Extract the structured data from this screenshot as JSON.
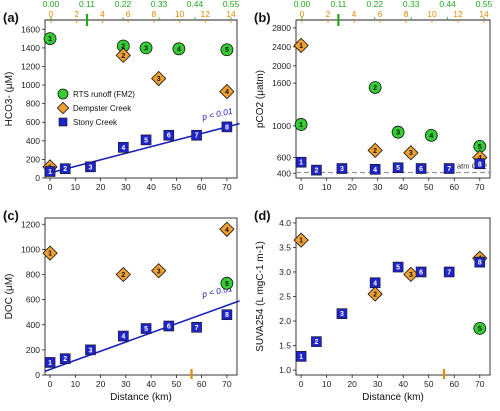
{
  "colors": {
    "rts": "#33cc33",
    "dempster": "#f0a030",
    "stony": "#1f24c8",
    "stony_line": "#1a22b8",
    "top_green": "#22a81e",
    "top_orange": "#e08a00"
  },
  "xlabel": "Distance (km)",
  "top_axes": {
    "green_ticks": [
      "0.00",
      "0.11",
      "0.22",
      "0.33",
      "0.44",
      "0.55"
    ],
    "orange_ticks": [
      "0",
      "2",
      "4",
      "6",
      "8",
      "10",
      "12",
      "14"
    ]
  },
  "legend": {
    "rts": "RTS runoff (FM2)",
    "dempster": "Dempster Creek",
    "stony": "Stony Creek"
  },
  "chart_data": [
    {
      "panel": "(a)",
      "type": "scatter",
      "ylabel": "HCO3- (μM)",
      "xlim": [
        -2,
        75
      ],
      "ylim": [
        0,
        1700
      ],
      "yticks": [
        "0",
        "200",
        "400",
        "600",
        "800",
        "1000",
        "1200",
        "1400",
        "1600"
      ],
      "xticks": [
        "0",
        "10",
        "20",
        "30",
        "40",
        "50",
        "60",
        "70"
      ],
      "pvalue": "p < 0.01",
      "regression": {
        "x": [
          -2,
          75
        ],
        "y": [
          40,
          585
        ]
      },
      "top_green_marker": 0.11,
      "series": [
        {
          "name": "RTS runoff (FM2)",
          "points": [
            [
              0,
              1500,
              "1"
            ],
            [
              29,
              1420,
              "2"
            ],
            [
              38,
              1400,
              "3"
            ],
            [
              51,
              1390,
              "4"
            ],
            [
              70,
              1380,
              "5"
            ]
          ]
        },
        {
          "name": "Dempster Creek",
          "points": [
            [
              0,
              120,
              "1"
            ],
            [
              29,
              1320,
              "2"
            ],
            [
              43,
              1070,
              "3"
            ],
            [
              70,
              930,
              "4"
            ]
          ]
        },
        {
          "name": "Stony Creek",
          "points": [
            [
              0,
              70,
              "1"
            ],
            [
              6,
              100,
              "2"
            ],
            [
              16,
              120,
              "3"
            ],
            [
              29,
              330,
              "4"
            ],
            [
              38,
              410,
              "5"
            ],
            [
              47,
              460,
              "6"
            ],
            [
              58,
              460,
              "7"
            ],
            [
              70,
              550,
              "8"
            ]
          ]
        }
      ]
    },
    {
      "panel": "(b)",
      "type": "scatter",
      "ylabel": "pCO2 (μatm)",
      "ylim": [
        340,
        3000
      ],
      "yticks": [
        "400",
        "600",
        "1000",
        "1600",
        "2000",
        "2400",
        "2800"
      ],
      "xticks": [
        "0",
        "10",
        "20",
        "30",
        "40",
        "50",
        "60",
        "70"
      ],
      "atm_label": "atm CO2",
      "atm_value": 410,
      "top_green_marker": 0.11,
      "series": [
        {
          "name": "RTS runoff (FM2)",
          "points": [
            [
              0,
              1020,
              "1"
            ],
            [
              29,
              1540,
              "2"
            ],
            [
              38,
              920,
              "3"
            ],
            [
              51,
              880,
              "4"
            ],
            [
              70,
              740,
              "5"
            ]
          ]
        },
        {
          "name": "Dempster Creek",
          "points": [
            [
              0,
              2430,
              "1"
            ],
            [
              29,
              690,
              "2"
            ],
            [
              43,
              660,
              "3"
            ],
            [
              70,
              600,
              "4"
            ]
          ]
        },
        {
          "name": "Stony Creek",
          "points": [
            [
              0,
              540,
              "1"
            ],
            [
              6,
              440,
              "2"
            ],
            [
              16,
              460,
              "3"
            ],
            [
              29,
              450,
              "4"
            ],
            [
              38,
              470,
              "5"
            ],
            [
              47,
              460,
              "6"
            ],
            [
              58,
              460,
              "7"
            ],
            [
              70,
              520,
              "8"
            ]
          ]
        }
      ]
    },
    {
      "panel": "(c)",
      "type": "scatter",
      "ylabel": "DOC (μM)",
      "ylim": [
        0,
        1250
      ],
      "yticks": [
        "0",
        "200",
        "400",
        "600",
        "800",
        "1000",
        "1200"
      ],
      "xticks": [
        "0",
        "10",
        "20",
        "30",
        "40",
        "50",
        "60",
        "70"
      ],
      "pvalue": "p < 0.01",
      "regression": {
        "x": [
          -2,
          75
        ],
        "y": [
          30,
          590
        ]
      },
      "bottom_orange_marker": 56,
      "series": [
        {
          "name": "RTS runoff (FM2)",
          "points": [
            [
              70,
              730,
              "5"
            ]
          ]
        },
        {
          "name": "Dempster Creek",
          "points": [
            [
              0,
              970,
              "1"
            ],
            [
              29,
              800,
              "2"
            ],
            [
              43,
              830,
              "3"
            ],
            [
              70,
              1160,
              "4"
            ]
          ]
        },
        {
          "name": "Stony Creek",
          "points": [
            [
              0,
              100,
              "1"
            ],
            [
              6,
              130,
              "2"
            ],
            [
              16,
              200,
              "3"
            ],
            [
              29,
              310,
              "4"
            ],
            [
              38,
              370,
              "5"
            ],
            [
              47,
              390,
              "6"
            ],
            [
              58,
              380,
              "7"
            ],
            [
              70,
              480,
              "8"
            ]
          ]
        }
      ]
    },
    {
      "panel": "(d)",
      "type": "scatter",
      "ylabel": "SUVA254 (L mgC-1 m-1)",
      "ylim": [
        0.9,
        4.1
      ],
      "yticks": [
        "1.0",
        "1.5",
        "2.0",
        "2.5",
        "3.0",
        "3.5",
        "4.0"
      ],
      "xticks": [
        "0",
        "10",
        "20",
        "30",
        "40",
        "50",
        "60",
        "70"
      ],
      "bottom_orange_marker": 56,
      "series": [
        {
          "name": "RTS runoff (FM2)",
          "points": [
            [
              70,
              1.85,
              "5"
            ]
          ]
        },
        {
          "name": "Dempster Creek",
          "points": [
            [
              0,
              3.65,
              "1"
            ],
            [
              29,
              2.55,
              "2"
            ],
            [
              43,
              2.95,
              "3"
            ],
            [
              70,
              3.28,
              "4"
            ]
          ]
        },
        {
          "name": "Stony Creek",
          "points": [
            [
              0,
              1.28,
              "1"
            ],
            [
              6,
              1.58,
              "2"
            ],
            [
              16,
              2.15,
              "3"
            ],
            [
              29,
              2.78,
              "4"
            ],
            [
              38,
              3.1,
              "5"
            ],
            [
              47,
              3.0,
              "6"
            ],
            [
              58,
              3.0,
              "7"
            ],
            [
              70,
              3.2,
              "8"
            ]
          ]
        }
      ]
    }
  ]
}
